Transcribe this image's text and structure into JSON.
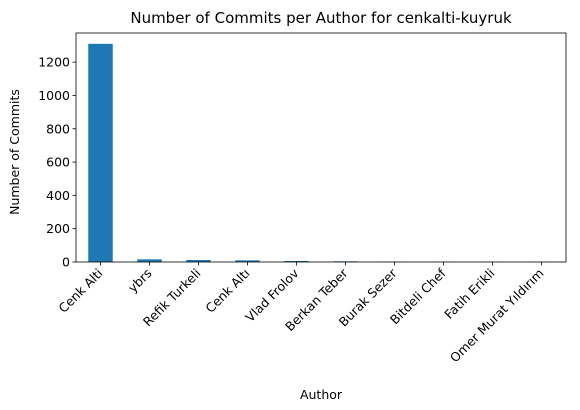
{
  "chart_data": {
    "type": "bar",
    "title": "Number of Commits per Author for cenkalti-kuyruk",
    "xlabel": "Author",
    "ylabel": "Number of Commits",
    "categories": [
      "Cenk Alti",
      "ybrs",
      "Refik Turkeli",
      "Cenk Altı",
      "Vlad Frolov",
      "Berkan Teber",
      "Burak Sezer",
      "Bitdeli Chef",
      "Fatih Erikli",
      "Omer Murat Yıldırım"
    ],
    "values": [
      1310,
      16,
      12,
      10,
      6,
      4,
      2,
      1,
      1,
      1
    ],
    "ylim": [
      0,
      1375
    ],
    "yticks": [
      0,
      200,
      400,
      600,
      800,
      1000,
      1200
    ],
    "grid": false,
    "legend": "none",
    "bar_color": "#1f77b4"
  }
}
